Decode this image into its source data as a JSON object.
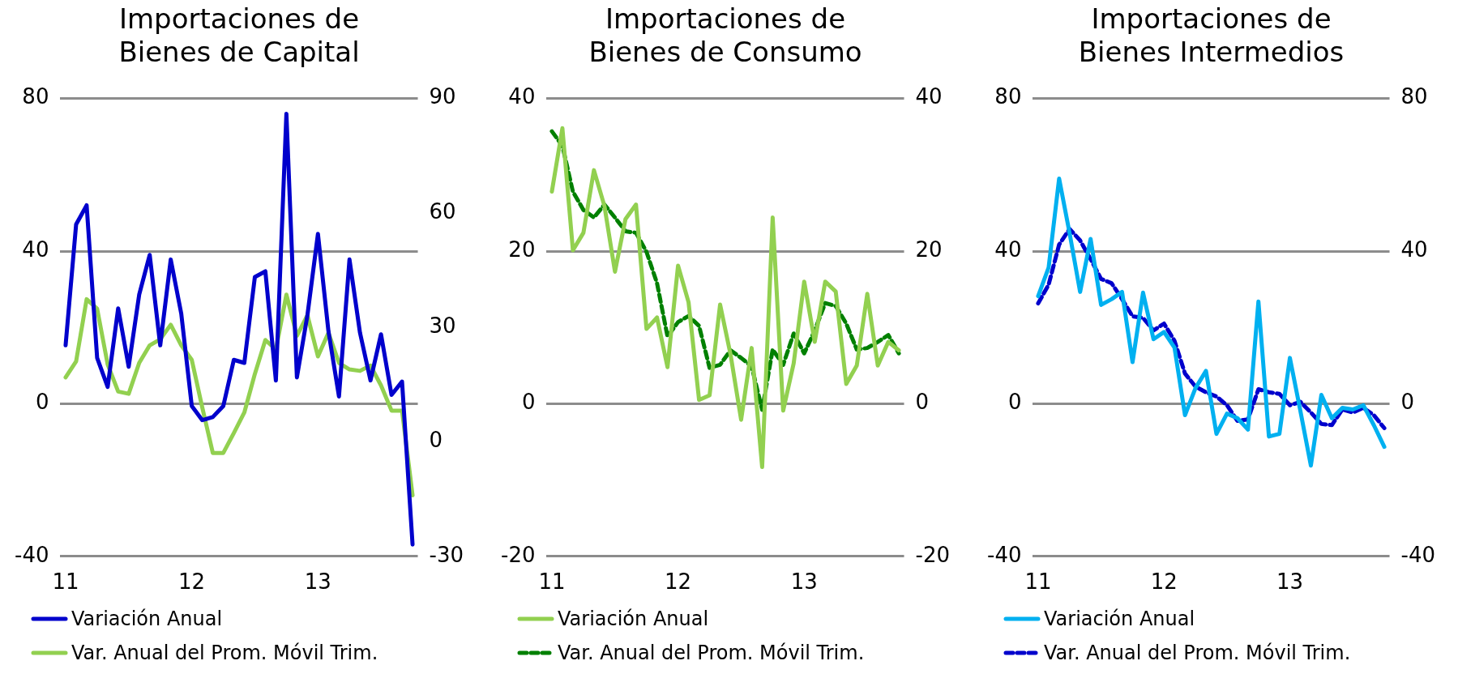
{
  "chart_data": [
    {
      "type": "line",
      "title": "Importaciones de\nBienes de Capital",
      "categories": [
        "11",
        null,
        null,
        null,
        null,
        null,
        null,
        null,
        null,
        null,
        null,
        null,
        "12",
        null,
        null,
        null,
        null,
        null,
        null,
        null,
        null,
        null,
        null,
        null,
        "13",
        null,
        null,
        null,
        null,
        null,
        null,
        null,
        null,
        null
      ],
      "series": [
        {
          "name": "Variación Anual",
          "color": "#0000cc",
          "line_style": "solid",
          "values": [
            15.3,
            47,
            52,
            12,
            4.4,
            25,
            9.7,
            28.6,
            39,
            15.3,
            37.8,
            23.6,
            -0.6,
            -4.3,
            -3.5,
            -0.6,
            11.5,
            10.7,
            33.2,
            34.7,
            6.1,
            76,
            6.9,
            23.2,
            44.5,
            19,
            1.9,
            37.8,
            18.6,
            6.1,
            18.2,
            2.3,
            5.8,
            -36.9
          ]
        },
        {
          "name": "Var. Anual del Prom. Móvil Trim.",
          "color": "#92d050",
          "line_style": "solid",
          "axis": "y2",
          "values": [
            16.9,
            21.1,
            37.4,
            34.9,
            20.3,
            13.2,
            12.6,
            20.7,
            25.3,
            26.9,
            30.7,
            25.3,
            21.5,
            9,
            -2.9,
            -2.9,
            2.3,
            7.7,
            17.8,
            26.7,
            24.2,
            38.6,
            27.8,
            33.2,
            22.4,
            28.6,
            20.7,
            19,
            18.6,
            20,
            14.8,
            8.2,
            8.2,
            -14
          ]
        }
      ],
      "ylim": [
        -40,
        80
      ],
      "yticks": [
        -40,
        0,
        40,
        80
      ],
      "y2lim": [
        -30,
        90
      ],
      "y2ticks": [
        -30,
        0,
        30,
        60,
        90
      ],
      "grid": "y",
      "legend": "bottom",
      "marker": "none"
    },
    {
      "type": "line",
      "title": "Importaciones de\nBienes de Consumo",
      "categories": [
        "11",
        null,
        null,
        null,
        null,
        null,
        null,
        null,
        null,
        null,
        null,
        null,
        "12",
        null,
        null,
        null,
        null,
        null,
        null,
        null,
        null,
        null,
        null,
        null,
        "13",
        null,
        null,
        null,
        null,
        null,
        null,
        null,
        null,
        null
      ],
      "series": [
        {
          "name": "Variación Anual",
          "color": "#92d050",
          "line_style": "solid",
          "values": [
            27.8,
            36.1,
            20.1,
            22.4,
            30.6,
            25.9,
            17.3,
            24.2,
            26.1,
            9.8,
            11.3,
            4.8,
            18.1,
            13.3,
            0.5,
            1.1,
            13,
            6.4,
            -2.1,
            7.3,
            -8.3,
            24.4,
            -0.9,
            5.3,
            16,
            8.1,
            16,
            14.7,
            2.6,
            5,
            14.4,
            5,
            8.1,
            7
          ]
        },
        {
          "name": "Var. Anual del Prom. Móvil Trim.",
          "color": "#008000",
          "line_style": "dashed",
          "values": [
            35.7,
            33.8,
            27.8,
            25.4,
            24.4,
            26.1,
            24.4,
            22.6,
            22.4,
            19.9,
            15.8,
            8.8,
            10.7,
            11.5,
            10.2,
            4.7,
            5.1,
            7,
            6,
            4.9,
            -0.8,
            7.1,
            5.1,
            9.2,
            6.6,
            9.6,
            13.2,
            12.8,
            10.5,
            7.1,
            7.3,
            8.1,
            9,
            6.6
          ]
        }
      ],
      "ylim": [
        -20,
        40
      ],
      "yticks": [
        -20,
        0,
        20,
        40
      ],
      "y2lim": [
        -20,
        40
      ],
      "y2ticks": [
        -20,
        0,
        20,
        40
      ],
      "grid": "y",
      "legend": "bottom",
      "marker": "none"
    },
    {
      "type": "line",
      "title": "Importaciones de\nBienes Intermedios",
      "categories": [
        "11",
        null,
        null,
        null,
        null,
        null,
        null,
        null,
        null,
        null,
        null,
        null,
        "12",
        null,
        null,
        null,
        null,
        null,
        null,
        null,
        null,
        null,
        null,
        null,
        "13",
        null,
        null,
        null,
        null,
        null,
        null,
        null,
        null,
        null
      ],
      "series": [
        {
          "name": "Variación Anual",
          "color": "#00b0f0",
          "line_style": "solid",
          "values": [
            28.2,
            35.7,
            59,
            44.7,
            29.3,
            43.2,
            25.9,
            27.4,
            29.3,
            10.9,
            29.1,
            16.9,
            18.8,
            14.7,
            -3,
            4.1,
            8.6,
            -7.9,
            -2.6,
            -3.8,
            -6.8,
            26.8,
            -8.6,
            -7.9,
            12,
            -1.9,
            -16.2,
            2.3,
            -3.8,
            -1.1,
            -1.5,
            -0.4,
            -5.6,
            -11.3
          ]
        },
        {
          "name": "Var. Anual del Prom. Móvil Trim.",
          "color": "#0000cc",
          "line_style": "dashed",
          "values": [
            26.3,
            31.2,
            41.7,
            45.8,
            42.8,
            37.9,
            32.7,
            31.6,
            27.4,
            22.9,
            22.5,
            19.2,
            21,
            16.5,
            7.9,
            4.5,
            3,
            1.9,
            -0.4,
            -4.5,
            -4.1,
            3.8,
            3,
            2.6,
            -0.4,
            0.5,
            -2.3,
            -5.3,
            -5.6,
            -1.5,
            -2.3,
            -1.1,
            -3,
            -6.4
          ]
        }
      ],
      "ylim": [
        -40,
        80
      ],
      "yticks": [
        -40,
        0,
        40,
        80
      ],
      "y2lim": [
        -40,
        80
      ],
      "y2ticks": [
        -40,
        0,
        40,
        80
      ],
      "grid": "y",
      "legend": "bottom",
      "marker": "none"
    }
  ]
}
